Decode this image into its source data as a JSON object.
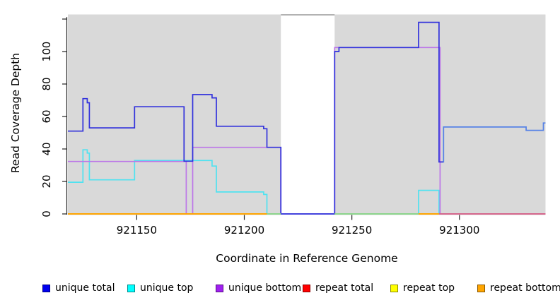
{
  "chart_data": {
    "type": "line",
    "subtype": "step-coverage",
    "title": "",
    "xlabel": "Coordinate in Reference Genome",
    "ylabel": "Read Coverage Depth",
    "x_axis": {
      "min": 921118,
      "max": 921340,
      "ticks": [
        921150,
        921200,
        921250,
        921300
      ]
    },
    "y_axis": {
      "min": 0,
      "max": 123,
      "ticks": [
        0,
        20,
        40,
        60,
        80,
        100,
        120
      ],
      "tick_labels": [
        "0",
        "20",
        "40",
        "60",
        "80",
        "100",
        ""
      ]
    },
    "panel_background": "#D9D9D9",
    "no_coverage_region": {
      "from": 921217,
      "to": 921242
    },
    "series": [
      {
        "name": "unique top",
        "color": "#50E2F0",
        "end": 921340,
        "steps": [
          [
            921118,
            19.5
          ],
          [
            921125,
            39.5
          ],
          [
            921127,
            37.5
          ],
          [
            921128,
            21
          ],
          [
            921149,
            32.9
          ],
          [
            921185,
            29.5
          ],
          [
            921187,
            13.5
          ],
          [
            921209,
            12
          ],
          [
            921210.5,
            0
          ],
          [
            921281,
            14.5
          ],
          [
            921290.5,
            0
          ]
        ]
      },
      {
        "name": "unique bottom",
        "color": "#BC76E8",
        "end": 921340,
        "steps": [
          [
            921118,
            32.3
          ],
          [
            921173,
            0
          ],
          [
            921176,
            41
          ],
          [
            921217,
            0
          ],
          [
            921242,
            102.5
          ],
          [
            921291,
            0
          ]
        ]
      },
      {
        "name": "unique total",
        "color": "#3232DC",
        "end": 921292.5,
        "steps": [
          [
            921118,
            51
          ],
          [
            921125,
            71
          ],
          [
            921127,
            68.5
          ],
          [
            921128,
            53
          ],
          [
            921149,
            66
          ],
          [
            921172,
            32.5
          ],
          [
            921176,
            73.5
          ],
          [
            921185,
            71.5
          ],
          [
            921187,
            54
          ],
          [
            921209,
            52.5
          ],
          [
            921210.5,
            41
          ],
          [
            921217,
            0
          ],
          [
            921242,
            100
          ],
          [
            921244,
            102.5
          ],
          [
            921281,
            118
          ],
          [
            921290.5,
            32
          ]
        ]
      },
      {
        "name": "unique total (right)",
        "color": "#5581E6",
        "end": 921340,
        "steps": [
          [
            921292.5,
            32
          ],
          [
            921292.6,
            53.5
          ],
          [
            921331,
            51.5
          ],
          [
            921339,
            56
          ]
        ]
      }
    ],
    "zero_line_segments": [
      {
        "from": 921118,
        "to": 921210.5,
        "color": "#FFA500",
        "meaning": "repeat bottom at 0"
      },
      {
        "from": 921210.5,
        "to": 921217,
        "color": "#8CD48C",
        "meaning": "unique top + repeat bottom at 0"
      },
      {
        "from": 921217,
        "to": 921242,
        "color": "#4343DD",
        "meaning": "unique total at 0 (no coverage gap)"
      },
      {
        "from": 921242,
        "to": 921281,
        "color": "#8CD48C",
        "meaning": "unique top + repeat bottom at 0"
      },
      {
        "from": 921281,
        "to": 921290.5,
        "color": "#FFA500",
        "meaning": "repeat bottom at 0"
      },
      {
        "from": 921290.5,
        "to": 921340,
        "color": "#D4668C",
        "meaning": "unique bottom + repeat bottom at 0"
      }
    ],
    "legend": [
      {
        "label": "unique total",
        "color": "#0000EE"
      },
      {
        "label": "unique top",
        "color": "#00FFFF"
      },
      {
        "label": "unique bottom",
        "color": "#A020F0"
      },
      {
        "label": "repeat total",
        "color": "#FF0000"
      },
      {
        "label": "repeat top",
        "color": "#FFFF00"
      },
      {
        "label": "repeat bottom",
        "color": "#FFA500"
      }
    ],
    "legend_x_positions": [
      60,
      180,
      305,
      428,
      552,
      675
    ],
    "axis_color": "#222222",
    "gap_top_border_color": "#999999"
  }
}
